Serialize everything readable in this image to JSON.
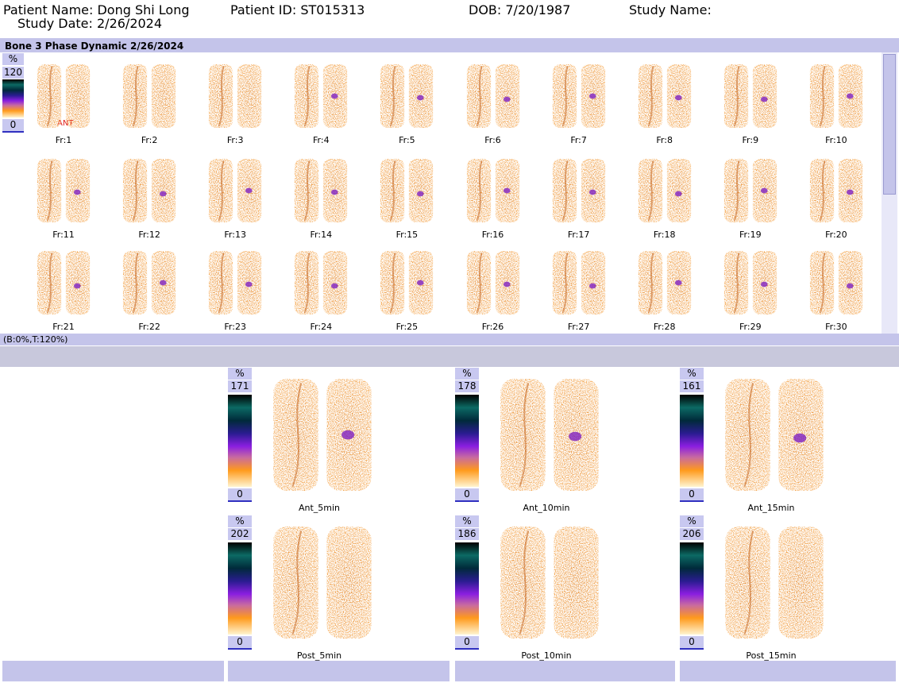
{
  "header": {
    "patient_name": "Patient Name: Dong Shi Long",
    "patient_id": "Patient ID: ST015313",
    "dob": "DOB: 7/20/1987",
    "study_name": "Study Name:",
    "study_date": "Study Date: 2/26/2024"
  },
  "dynamic": {
    "title": "Bone 3 Phase Dynamic 2/26/2024",
    "scale": {
      "unit": "%",
      "max": "120",
      "min": "0"
    },
    "view_label": "ANT",
    "frames": [
      "Fr:1",
      "Fr:2",
      "Fr:3",
      "Fr:4",
      "Fr:5",
      "Fr:6",
      "Fr:7",
      "Fr:8",
      "Fr:9",
      "Fr:10",
      "Fr:11",
      "Fr:12",
      "Fr:13",
      "Fr:14",
      "Fr:15",
      "Fr:16",
      "Fr:17",
      "Fr:18",
      "Fr:19",
      "Fr:20",
      "Fr:21",
      "Fr:22",
      "Fr:23",
      "Fr:24",
      "Fr:25",
      "Fr:26",
      "Fr:27",
      "Fr:28",
      "Fr:29",
      "Fr:30"
    ],
    "footer": "(B:0%,T:120%)"
  },
  "statics": [
    {
      "unit": "%",
      "max": "171",
      "min": "0",
      "label": "Ant_5min"
    },
    {
      "unit": "%",
      "max": "178",
      "min": "0",
      "label": "Ant_10min"
    },
    {
      "unit": "%",
      "max": "161",
      "min": "0",
      "label": "Ant_15min"
    },
    {
      "unit": "%",
      "max": "202",
      "min": "0",
      "label": "Post_5min"
    },
    {
      "unit": "%",
      "max": "186",
      "min": "0",
      "label": "Post_10min"
    },
    {
      "unit": "%",
      "max": "206",
      "min": "0",
      "label": "Post_15min"
    }
  ]
}
